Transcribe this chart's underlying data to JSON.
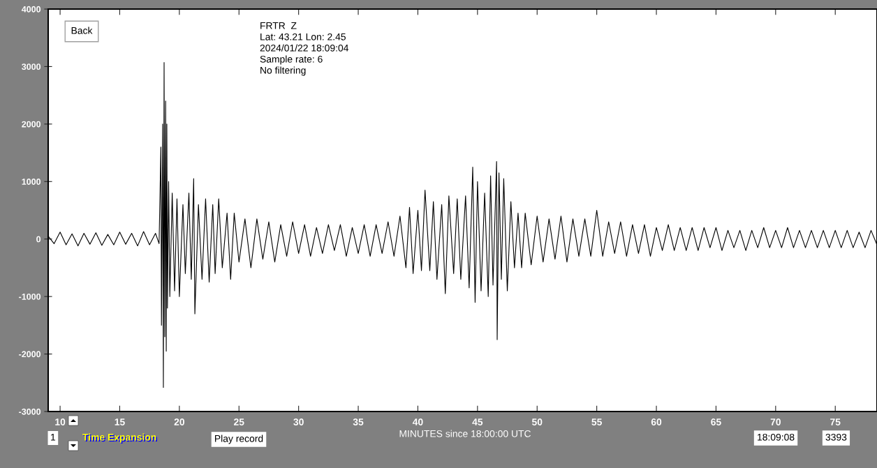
{
  "chart_data": {
    "type": "line",
    "title": "FRTR  Z",
    "xlabel": "MINUTES since 18:00:00 UTC",
    "annotations": [
      "Lat: 43.21 Lon: 2.45",
      "2024/01/22 18:09:04",
      "Sample rate: 6",
      "No filtering",
      "Back",
      "1",
      "Time Expansion",
      "Play record",
      "18:09:08",
      "3393"
    ],
    "xlim": [
      9.0,
      78.5
    ],
    "ylim": [
      -3000,
      4000
    ],
    "xticks": [
      10,
      15,
      20,
      25,
      30,
      35,
      40,
      45,
      50,
      55,
      60,
      65,
      70,
      75
    ],
    "yticks": [
      -3000,
      -2000,
      -1000,
      0,
      1000,
      2000,
      3000,
      4000
    ],
    "grid": false,
    "legend": false,
    "series": [
      {
        "color": "#000000",
        "x": [
          9.0,
          9.5,
          10,
          10.5,
          11,
          11.5,
          12,
          12.5,
          13,
          13.5,
          14,
          14.5,
          15,
          15.5,
          16,
          16.5,
          17,
          17.5,
          18,
          18.3,
          18.45,
          18.5,
          18.6,
          18.66,
          18.72,
          18.78,
          18.85,
          18.9,
          18.95,
          19.0,
          19.1,
          19.2,
          19.4,
          19.6,
          19.8,
          20.0,
          20.3,
          20.5,
          20.8,
          21.0,
          21.2,
          21.3,
          21.6,
          21.9,
          22.2,
          22.5,
          22.8,
          23.0,
          23.3,
          23.6,
          24.0,
          24.3,
          24.6,
          25.0,
          25.5,
          26.0,
          26.5,
          27.0,
          27.5,
          28.0,
          28.5,
          29.0,
          29.5,
          30.0,
          30.5,
          31.0,
          31.5,
          32.0,
          32.5,
          33.0,
          33.5,
          34.0,
          34.5,
          35.0,
          35.5,
          36.0,
          36.5,
          37.0,
          37.5,
          38.0,
          38.5,
          39.0,
          39.3,
          39.6,
          40.0,
          40.3,
          40.6,
          41.0,
          41.3,
          41.6,
          42.0,
          42.3,
          42.6,
          43.0,
          43.3,
          43.6,
          44.0,
          44.3,
          44.6,
          44.8,
          45.0,
          45.3,
          45.6,
          45.9,
          46.1,
          46.3,
          46.6,
          46.65,
          46.8,
          47.0,
          47.2,
          47.5,
          47.8,
          48.1,
          48.4,
          48.7,
          49.0,
          49.5,
          50.0,
          50.5,
          51.0,
          51.5,
          52.0,
          52.5,
          53.0,
          53.5,
          54.0,
          54.5,
          55.0,
          55.5,
          56.0,
          56.5,
          57.0,
          57.5,
          58.0,
          58.5,
          59.0,
          59.5,
          60.0,
          60.5,
          61.0,
          61.5,
          62.0,
          62.5,
          63.0,
          63.5,
          64.0,
          64.5,
          65.0,
          65.5,
          66.0,
          66.5,
          67.0,
          67.5,
          68.0,
          68.5,
          69.0,
          69.5,
          70.0,
          70.5,
          71.0,
          71.5,
          72.0,
          72.5,
          73.0,
          73.5,
          74.0,
          74.5,
          75.0,
          75.5,
          76.0,
          76.5,
          77.0,
          77.5,
          78.0,
          78.5
        ],
        "values": [
          50,
          -80,
          120,
          -100,
          90,
          -120,
          100,
          -90,
          110,
          -110,
          80,
          -100,
          120,
          -90,
          100,
          -120,
          130,
          -100,
          100,
          -80,
          1600,
          -1500,
          2000,
          -2580,
          3070,
          -1700,
          2400,
          -1950,
          2000,
          -1200,
          1000,
          -1000,
          800,
          -900,
          700,
          -1000,
          600,
          -600,
          800,
          -700,
          1050,
          -1300,
          600,
          -700,
          700,
          -750,
          600,
          -600,
          700,
          -500,
          450,
          -700,
          450,
          -400,
          350,
          -500,
          350,
          -350,
          300,
          -400,
          250,
          -300,
          300,
          -250,
          250,
          -300,
          200,
          -250,
          250,
          -200,
          250,
          -300,
          200,
          -250,
          250,
          -300,
          250,
          -250,
          300,
          -300,
          400,
          -500,
          550,
          -600,
          500,
          -550,
          850,
          -550,
          650,
          -700,
          600,
          -950,
          750,
          -600,
          700,
          -700,
          750,
          -850,
          1250,
          -1100,
          1000,
          -900,
          800,
          -1000,
          1100,
          -800,
          1350,
          -1750,
          1150,
          -700,
          1050,
          -900,
          650,
          -500,
          450,
          -500,
          450,
          -450,
          400,
          -400,
          350,
          -350,
          400,
          -400,
          350,
          -300,
          350,
          -300,
          500,
          -300,
          300,
          -250,
          300,
          -300,
          250,
          -250,
          250,
          -300,
          200,
          -200,
          250,
          -200,
          200,
          -200,
          200,
          -200,
          200,
          -150,
          200,
          -200,
          150,
          -150,
          150,
          -200,
          150,
          -150,
          200,
          -150,
          150,
          -150,
          200,
          -150,
          150,
          -150,
          150,
          -150,
          150,
          -150,
          150,
          -150,
          150,
          -150,
          120,
          -150,
          150,
          -100
        ]
      }
    ]
  }
}
